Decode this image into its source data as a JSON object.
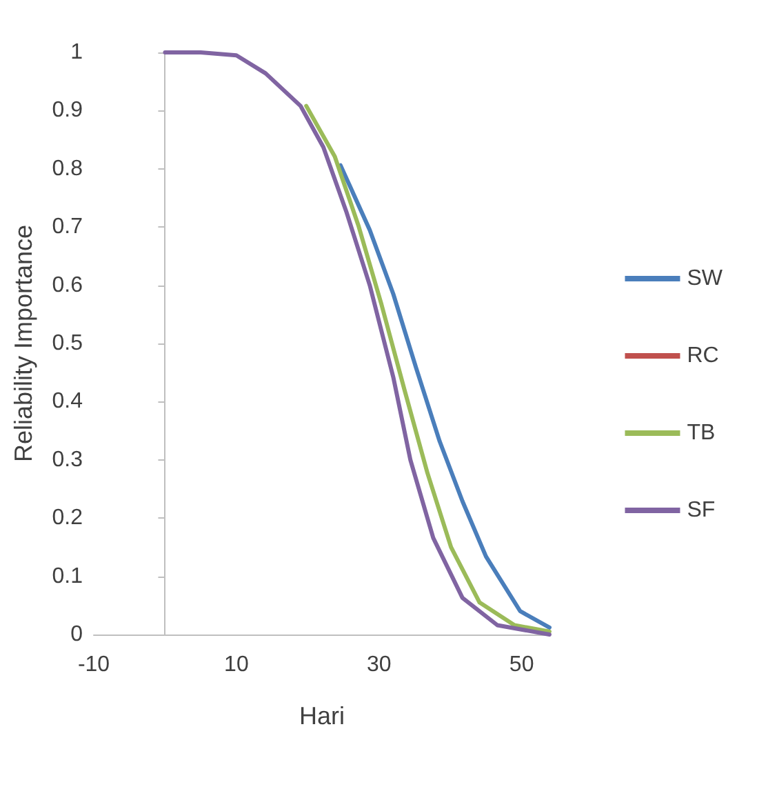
{
  "chart_data": {
    "type": "line",
    "xlabel": "Hari",
    "ylabel": "Reliability Importance",
    "xlim": [
      -10,
      54
    ],
    "xticks": [
      -10,
      10,
      30,
      50
    ],
    "ylim": [
      0,
      1
    ],
    "yticks": [
      0,
      0.1,
      0.2,
      0.3,
      0.4,
      0.5,
      0.6,
      0.7,
      0.8,
      0.9,
      1
    ],
    "grid": false,
    "legend": "right",
    "marker": "none",
    "line_style": "solid",
    "series": [
      {
        "name": "SW",
        "color": "#4a7ebb",
        "x": [
          24.6,
          28.7,
          32.0,
          35.2,
          38.5,
          41.7,
          45.0,
          49.8,
          53.9
        ],
        "values": [
          0.806,
          0.695,
          0.585,
          0.458,
          0.332,
          0.229,
          0.134,
          0.04,
          0.012
        ]
      },
      {
        "name": "RC",
        "color": "#c0504d"
      },
      {
        "name": "TB",
        "color": "#9bbb59",
        "x": [
          19.8,
          23.8,
          27.1,
          30.3,
          33.6,
          36.8,
          40.1,
          44.1,
          49.0,
          53.9
        ],
        "values": [
          0.908,
          0.821,
          0.703,
          0.569,
          0.419,
          0.277,
          0.15,
          0.055,
          0.016,
          0.005
        ]
      },
      {
        "name": "SF",
        "color": "#8064a2",
        "x": [
          0,
          5,
          10,
          14.1,
          19.0,
          22.2,
          25.4,
          28.7,
          32.0,
          34.4,
          37.6,
          41.7,
          46.6,
          53.9
        ],
        "values": [
          1,
          1,
          0.995,
          0.964,
          0.908,
          0.837,
          0.727,
          0.6,
          0.442,
          0.3,
          0.166,
          0.063,
          0.016,
          0
        ]
      }
    ]
  }
}
